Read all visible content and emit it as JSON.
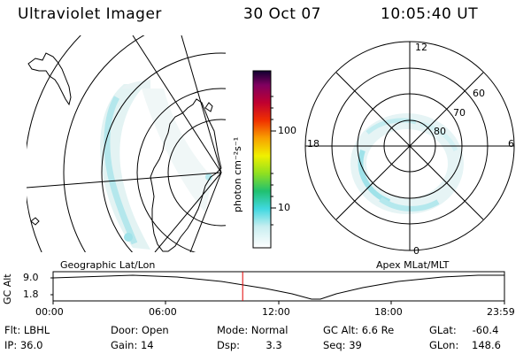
{
  "header": {
    "title": "Ultraviolet Imager",
    "date": "30 Oct 07",
    "time": "10:05:40 UT"
  },
  "colorbar": {
    "unit_label": "photon cm⁻²s⁻¹",
    "ticks": [
      "100",
      "10"
    ]
  },
  "polar_plot": {
    "mlt_labels": [
      "12",
      "18",
      "6",
      "0"
    ],
    "lat_labels": [
      "60",
      "70",
      "80"
    ]
  },
  "projections": {
    "left": "Geographic Lat/Lon",
    "right": "Apex MLat/MLT"
  },
  "altitude_plot": {
    "ylabel": "GC Alt",
    "yticks": [
      "9.0",
      "1.8"
    ],
    "xticks": [
      "00:00",
      "06:00",
      "12:00",
      "18:00",
      "23:59"
    ],
    "current_time_fraction": 0.42,
    "marker_color": "#e00000"
  },
  "info": [
    [
      {
        "label": "Flt:",
        "value": "LBHL"
      },
      {
        "label": "Door:",
        "value": "Open"
      },
      {
        "label": "Mode:",
        "value": "Normal"
      },
      {
        "label": "GC Alt:",
        "value": "6.6 Re"
      },
      {
        "label": "GLat:",
        "value": "-60.4"
      }
    ],
    [
      {
        "label": "IP:",
        "value": "36.0"
      },
      {
        "label": "Gain:",
        "value": "14"
      },
      {
        "label": "Dsp:",
        "value": "3.3"
      },
      {
        "label": "Seq:",
        "value": "39"
      },
      {
        "label": "GLon:",
        "value": "148.6"
      }
    ]
  ]
}
